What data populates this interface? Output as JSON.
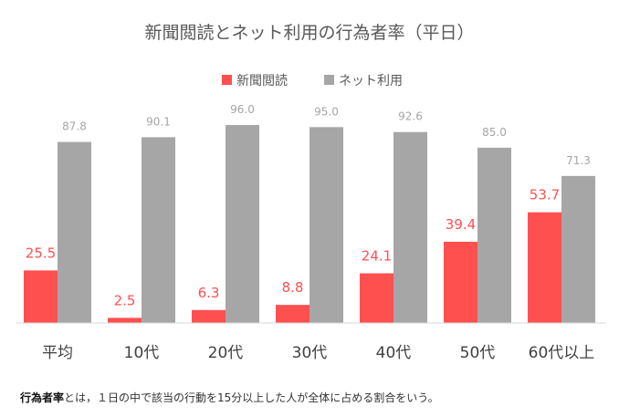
{
  "chart_data": {
    "type": "bar",
    "title": "新聞閲読とネット利用の行為者率（平日）",
    "categories": [
      "平均",
      "10代",
      "20代",
      "30代",
      "40代",
      "50代",
      "60代以上"
    ],
    "series": [
      {
        "name": "新聞閲読",
        "color": "#ff5050",
        "values": [
          25.5,
          2.5,
          6.3,
          8.8,
          24.1,
          39.4,
          53.7
        ]
      },
      {
        "name": "ネット利用",
        "color": "#a6a6a6",
        "values": [
          87.8,
          90.1,
          96.0,
          95.0,
          92.6,
          85.0,
          71.3
        ]
      }
    ],
    "xlabel": "",
    "ylabel": "",
    "ylim": [
      0,
      100
    ],
    "grid": false,
    "legend": "top-center"
  },
  "footnote": {
    "term": "行為者率",
    "text": "とは，１日の中で該当の行動を15分以上した人が全体に占める割合をいう。"
  }
}
